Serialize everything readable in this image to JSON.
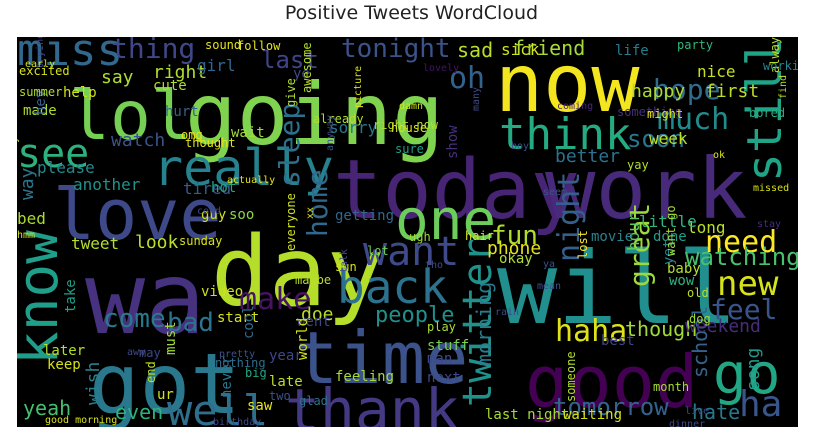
{
  "title": "Positive Tweets WordCloud",
  "chart_data": {
    "type": "wordcloud",
    "title": "Positive Tweets WordCloud",
    "background_color": "#000000",
    "colormap": "viridis",
    "words": [
      {
        "text": "now",
        "color": "#f4e61e"
      },
      {
        "text": "going",
        "color": "#7fd34e"
      },
      {
        "text": "today",
        "color": "#482475"
      },
      {
        "text": "work",
        "color": "#472a7a"
      },
      {
        "text": "day",
        "color": "#b5de2b"
      },
      {
        "text": "will",
        "color": "#218f8d"
      },
      {
        "text": "wa",
        "color": "#46327e"
      },
      {
        "text": "good",
        "color": "#440154"
      },
      {
        "text": "got",
        "color": "#2a788e"
      },
      {
        "text": "time",
        "color": "#3b528b"
      },
      {
        "text": "love",
        "color": "#3e4989"
      },
      {
        "text": "lol",
        "color": "#75d054"
      },
      {
        "text": "one",
        "color": "#6ccd5a"
      },
      {
        "text": "know",
        "color": "#1f9e89"
      },
      {
        "text": "go",
        "color": "#22a785"
      },
      {
        "text": "really",
        "color": "#26828e"
      },
      {
        "text": "thank",
        "color": "#443983"
      },
      {
        "text": "miss",
        "color": "#31688e"
      },
      {
        "text": "back",
        "color": "#2c728e"
      },
      {
        "text": "think",
        "color": "#25ab82"
      },
      {
        "text": "still",
        "color": "#20a486"
      },
      {
        "text": "see",
        "color": "#2db27d"
      },
      {
        "text": "want",
        "color": "#3e4a89"
      },
      {
        "text": "new",
        "color": "#d8e219"
      },
      {
        "text": "need",
        "color": "#fde725"
      },
      {
        "text": "much",
        "color": "#228c8d"
      },
      {
        "text": "haha",
        "color": "#dde318"
      },
      {
        "text": "ha",
        "color": "#39568c"
      },
      {
        "text": "twitter",
        "color": "#21918c"
      },
      {
        "text": "well",
        "color": "#2e6f8e"
      },
      {
        "text": "make",
        "color": "#471365"
      },
      {
        "text": "home",
        "color": "#31688e"
      },
      {
        "text": "hope",
        "color": "#2f6c8e"
      },
      {
        "text": "last",
        "color": "#414487"
      },
      {
        "text": "tonight",
        "color": "#3b528b"
      },
      {
        "text": "thing",
        "color": "#3f4788"
      },
      {
        "text": "oh",
        "color": "#33638d"
      },
      {
        "text": "sleep",
        "color": "#2d708e"
      },
      {
        "text": "feel",
        "color": "#3a548c"
      },
      {
        "text": "fun",
        "color": "#b2dd2d"
      },
      {
        "text": "come",
        "color": "#29798e"
      },
      {
        "text": "bad",
        "color": "#2c738e"
      },
      {
        "text": "night",
        "color": "#355f8d"
      },
      {
        "text": "great",
        "color": "#9bd93c"
      },
      {
        "text": "watching",
        "color": "#48c16e"
      },
      {
        "text": "tomorrow",
        "color": "#33638d"
      },
      {
        "text": "soon",
        "color": "#2a768e"
      },
      {
        "text": "though",
        "color": "#a0da39"
      },
      {
        "text": "morning",
        "color": "#287c8e"
      },
      {
        "text": "people",
        "color": "#21908d"
      },
      {
        "text": "even",
        "color": "#2db27d"
      },
      {
        "text": "yeah",
        "color": "#46c06f"
      },
      {
        "text": "wish",
        "color": "#27808e"
      },
      {
        "text": "school",
        "color": "#33638d"
      },
      {
        "text": "song",
        "color": "#1f998a"
      },
      {
        "text": "hate",
        "color": "#29798e"
      },
      {
        "text": "weekend",
        "color": "#472d7b"
      },
      {
        "text": "friend",
        "color": "#a5db36"
      },
      {
        "text": "sad",
        "color": "#b8de29"
      },
      {
        "text": "say",
        "color": "#b0dd2f"
      },
      {
        "text": "right",
        "color": "#b0dd2f"
      },
      {
        "text": "girl",
        "color": "#31678e"
      },
      {
        "text": "happy",
        "color": "#addc30"
      },
      {
        "text": "first",
        "color": "#bade28"
      },
      {
        "text": "nice",
        "color": "#c5e021"
      },
      {
        "text": "life",
        "color": "#287d8e"
      },
      {
        "text": "sick",
        "color": "#d2e21b"
      },
      {
        "text": "sorry",
        "color": "#2a768e"
      },
      {
        "text": "week",
        "color": "#bddf26"
      },
      {
        "text": "better",
        "color": "#2c728e"
      },
      {
        "text": "another",
        "color": "#21918c"
      },
      {
        "text": "tired",
        "color": "#365c8d"
      },
      {
        "text": "please",
        "color": "#23898e"
      },
      {
        "text": "look",
        "color": "#bddf26"
      },
      {
        "text": "tweet",
        "color": "#b5de2b"
      },
      {
        "text": "bed",
        "color": "#a8db34"
      },
      {
        "text": "phone",
        "color": "#e2e418"
      },
      {
        "text": "hour",
        "color": "#5ec962"
      },
      {
        "text": "long",
        "color": "#b8de29"
      },
      {
        "text": "little",
        "color": "#2fb47c"
      },
      {
        "text": "way",
        "color": "#2b758e"
      },
      {
        "text": "getting",
        "color": "#31678e"
      },
      {
        "text": "watch",
        "color": "#3b528b"
      },
      {
        "text": "show",
        "color": "#46307e"
      },
      {
        "text": "wait",
        "color": "#a2da37"
      },
      {
        "text": "guy",
        "color": "#d0e11c"
      },
      {
        "text": "soo",
        "color": "#8bd646"
      },
      {
        "text": "hot",
        "color": "#22a884"
      },
      {
        "text": "doe",
        "color": "#bade28"
      },
      {
        "text": "start",
        "color": "#d5e21a"
      },
      {
        "text": "take",
        "color": "#1f9f88"
      },
      {
        "text": "video",
        "color": "#cae11f"
      },
      {
        "text": "cool",
        "color": "#2e6e8e"
      },
      {
        "text": "went",
        "color": "#404688"
      },
      {
        "text": "later",
        "color": "#b5de2b"
      },
      {
        "text": "keep",
        "color": "#d5e21a"
      },
      {
        "text": "best",
        "color": "#414487"
      },
      {
        "text": "year",
        "color": "#3f4788"
      },
      {
        "text": "saw",
        "color": "#e7e419"
      },
      {
        "text": "ur",
        "color": "#d2e21b"
      },
      {
        "text": "never",
        "color": "#2a788e"
      },
      {
        "text": "feeling",
        "color": "#a5db36"
      },
      {
        "text": "world",
        "color": "#d0e11c"
      },
      {
        "text": "last night",
        "color": "#a5db36"
      },
      {
        "text": "waiting",
        "color": "#d8e219"
      },
      {
        "text": "someone",
        "color": "#b5de2b"
      },
      {
        "text": "month",
        "color": "#aadc32"
      },
      {
        "text": "dog",
        "color": "#a0da39"
      },
      {
        "text": "okay",
        "color": "#b0dd2f"
      },
      {
        "text": "movie",
        "color": "#26828e"
      },
      {
        "text": "done",
        "color": "#1f9e89"
      },
      {
        "text": "baby",
        "color": "#b5de2b"
      },
      {
        "text": "yet",
        "color": "#24878e"
      },
      {
        "text": "wow",
        "color": "#2db27d"
      },
      {
        "text": "lot",
        "color": "#6ccd5a"
      },
      {
        "text": "ugh",
        "color": "#9fda3a"
      },
      {
        "text": "stuff",
        "color": "#7ad151"
      },
      {
        "text": "man",
        "color": "#3e4989"
      },
      {
        "text": "next",
        "color": "#3f4889"
      },
      {
        "text": "late",
        "color": "#b8de29"
      },
      {
        "text": "glad",
        "color": "#2c728e"
      },
      {
        "text": "two",
        "color": "#3b528b"
      },
      {
        "text": "big",
        "color": "#22a785"
      },
      {
        "text": "nothing",
        "color": "#2e6e8e"
      },
      {
        "text": "pretty",
        "color": "#3a548c"
      },
      {
        "text": "must",
        "color": "#a2da37"
      },
      {
        "text": "may",
        "color": "#3f4788"
      },
      {
        "text": "cute",
        "color": "#b0dd2f"
      },
      {
        "text": "help",
        "color": "#cde11d"
      },
      {
        "text": "made",
        "color": "#addc30"
      },
      {
        "text": "hey",
        "color": "#34618d"
      },
      {
        "text": "hurt",
        "color": "#34618d"
      },
      {
        "text": "ye",
        "color": "#3e4a89"
      },
      {
        "text": "awesome",
        "color": "#b5de2b"
      },
      {
        "text": "already",
        "color": "#b0dd2f"
      },
      {
        "text": "right now",
        "color": "#b0dd2f"
      },
      {
        "text": "sure",
        "color": "#1f9e89"
      },
      {
        "text": "house",
        "color": "#dae319"
      },
      {
        "text": "omg",
        "color": "#e5e419"
      },
      {
        "text": "party",
        "color": "#32b67a"
      },
      {
        "text": "always",
        "color": "#b8de29"
      },
      {
        "text": "working",
        "color": "#24868e"
      },
      {
        "text": "sound",
        "color": "#e2e418"
      },
      {
        "text": "follow",
        "color": "#e2e418"
      },
      {
        "text": "excited",
        "color": "#d5e21a"
      },
      {
        "text": "summer",
        "color": "#b0dd2f"
      },
      {
        "text": "ready",
        "color": "#d8e219"
      },
      {
        "text": "thought",
        "color": "#e2e418"
      },
      {
        "text": "give",
        "color": "#b0dd2f"
      },
      {
        "text": "yay",
        "color": "#b5de2b"
      },
      {
        "text": "bored",
        "color": "#26ad81"
      },
      {
        "text": "find",
        "color": "#b8de29"
      },
      {
        "text": "something",
        "color": "#46307e"
      },
      {
        "text": "might",
        "color": "#e5e419"
      },
      {
        "text": "hair",
        "color": "#d8e219"
      },
      {
        "text": "lost",
        "color": "#fde725"
      },
      {
        "text": "want go",
        "color": "#a2da37"
      },
      {
        "text": "old",
        "color": "#bade28"
      },
      {
        "text": "hmm",
        "color": "#d2e21b"
      },
      {
        "text": "sun",
        "color": "#d5e21a"
      },
      {
        "text": "everyone",
        "color": "#d2e21b"
      },
      {
        "text": "sunday",
        "color": "#d8e219"
      },
      {
        "text": "maybe",
        "color": "#bade28"
      },
      {
        "text": "play",
        "color": "#a8db34"
      },
      {
        "text": "end",
        "color": "#bddf26"
      },
      {
        "text": "said",
        "color": "#a5db36"
      },
      {
        "text": "good morning",
        "color": "#d8e219"
      },
      {
        "text": "birthday",
        "color": "#3e4a89"
      },
      {
        "text": "dinner",
        "color": "#3e4a89"
      },
      {
        "text": "live",
        "color": "#3e4a89"
      },
      {
        "text": "talk",
        "color": "#3e4a89"
      },
      {
        "text": "missed",
        "color": "#d5e21a"
      },
      {
        "text": "stay",
        "color": "#472d7b"
      },
      {
        "text": "lovely",
        "color": "#471365"
      },
      {
        "text": "trying",
        "color": "#414487"
      },
      {
        "text": "many",
        "color": "#3e4a89"
      },
      {
        "text": "coming",
        "color": "#482475"
      },
      {
        "text": "damn",
        "color": "#d2e21b"
      },
      {
        "text": "picture",
        "color": "#dde318"
      },
      {
        "text": "actually",
        "color": "#e5e419"
      },
      {
        "text": "early",
        "color": "#d5e21a"
      },
      {
        "text": "xx",
        "color": "#dde318"
      },
      {
        "text": "cold",
        "color": "#3f4788"
      },
      {
        "text": "anyway",
        "color": "#3b528b"
      },
      {
        "text": "boy",
        "color": "#3b528b"
      },
      {
        "text": "seem",
        "color": "#3b528b"
      },
      {
        "text": "ya",
        "color": "#3b528b"
      },
      {
        "text": "mean",
        "color": "#3e4a89"
      },
      {
        "text": "tho",
        "color": "#3e4a89"
      },
      {
        "text": "rain",
        "color": "#3e4a89"
      },
      {
        "text": "aww",
        "color": "#3e4a89"
      },
      {
        "text": "ok",
        "color": "#dde318"
      }
    ]
  }
}
